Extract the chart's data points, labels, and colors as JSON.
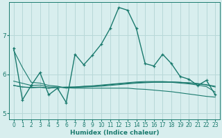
{
  "xlabel": "Humidex (Indice chaleur)",
  "background_color": "#d8eeee",
  "grid_color": "#b8d8d8",
  "line_color": "#1a7a6e",
  "xlim": [
    -0.5,
    23.5
  ],
  "ylim": [
    4.85,
    7.85
  ],
  "yticks": [
    5,
    6,
    7
  ],
  "xticks": [
    0,
    1,
    2,
    3,
    4,
    5,
    6,
    7,
    8,
    9,
    10,
    11,
    12,
    13,
    14,
    15,
    16,
    17,
    18,
    19,
    20,
    21,
    22,
    23
  ],
  "lines_with_markers": [
    {
      "x": [
        0,
        1,
        2,
        3,
        4,
        5,
        6,
        7,
        8,
        9,
        10,
        11,
        12,
        13,
        14,
        15,
        16,
        17,
        18,
        19,
        20,
        21,
        22,
        23
      ],
      "y": [
        6.68,
        5.35,
        5.72,
        6.05,
        5.48,
        5.65,
        5.28,
        6.52,
        6.25,
        6.5,
        6.78,
        7.18,
        7.72,
        7.65,
        7.18,
        6.28,
        6.22,
        6.52,
        6.28,
        5.95,
        5.88,
        5.72,
        5.85,
        5.48
      ]
    }
  ],
  "lines_flat": [
    {
      "x": [
        0,
        1,
        2,
        3,
        4,
        5,
        6,
        7,
        8,
        9,
        10,
        11,
        12,
        13,
        14,
        15,
        16,
        17,
        18,
        19,
        20,
        21,
        22,
        23
      ],
      "y": [
        5.72,
        5.68,
        5.66,
        5.67,
        5.65,
        5.67,
        5.67,
        5.68,
        5.69,
        5.7,
        5.72,
        5.74,
        5.76,
        5.78,
        5.79,
        5.8,
        5.81,
        5.81,
        5.81,
        5.8,
        5.79,
        5.77,
        5.74,
        5.7
      ]
    },
    {
      "x": [
        0,
        1,
        2,
        3,
        4,
        5,
        6,
        7,
        8,
        9,
        10,
        11,
        12,
        13,
        14,
        15,
        16,
        17,
        18,
        19,
        20,
        21,
        22,
        23
      ],
      "y": [
        6.62,
        6.18,
        5.8,
        5.78,
        5.72,
        5.7,
        5.65,
        5.67,
        5.68,
        5.69,
        5.7,
        5.72,
        5.74,
        5.76,
        5.78,
        5.79,
        5.8,
        5.8,
        5.8,
        5.78,
        5.76,
        5.73,
        5.69,
        5.55
      ]
    },
    {
      "x": [
        0,
        1,
        2,
        3,
        4,
        5,
        6,
        7,
        8,
        9,
        10,
        11,
        12,
        13,
        14,
        15,
        16,
        17,
        18,
        19,
        20,
        21,
        22,
        23
      ],
      "y": [
        5.72,
        5.68,
        5.67,
        5.68,
        5.65,
        5.67,
        5.68,
        5.68,
        5.7,
        5.71,
        5.73,
        5.75,
        5.77,
        5.79,
        5.81,
        5.82,
        5.82,
        5.82,
        5.81,
        5.8,
        5.78,
        5.76,
        5.73,
        5.68
      ]
    },
    {
      "x": [
        0,
        2,
        3,
        4,
        5,
        6,
        7,
        8,
        9,
        10,
        11,
        12,
        13,
        14,
        15,
        16,
        17,
        18,
        19,
        20,
        21,
        22,
        23
      ],
      "y": [
        5.83,
        5.72,
        5.73,
        5.68,
        5.68,
        5.66,
        5.65,
        5.65,
        5.65,
        5.65,
        5.65,
        5.65,
        5.65,
        5.63,
        5.62,
        5.6,
        5.58,
        5.56,
        5.53,
        5.5,
        5.47,
        5.44,
        5.42
      ]
    }
  ]
}
